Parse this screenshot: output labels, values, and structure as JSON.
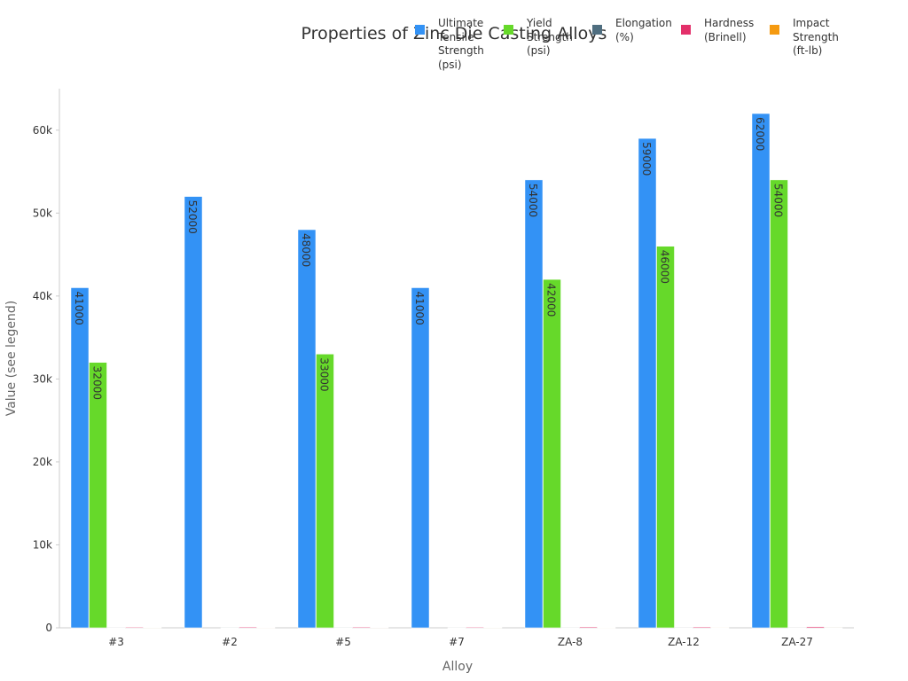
{
  "chart_data": {
    "type": "bar",
    "title": "Properties of Zinc Die Casting Alloys",
    "x_label": "Alloy",
    "y_label": "Value (see legend)",
    "categories": [
      "#3",
      "#2",
      "#5",
      "#7",
      "ZA-8",
      "ZA-12",
      "ZA-27"
    ],
    "series": [
      {
        "name": "Ultimate Tensile Strength (psi)",
        "color": "#3392f5",
        "values": [
          41000,
          52000,
          48000,
          41000,
          54000,
          59000,
          62000
        ]
      },
      {
        "name": "Yield Strength (psi)",
        "color": "#66d92a",
        "values": [
          32000,
          null,
          33000,
          null,
          42000,
          46000,
          54000
        ]
      },
      {
        "name": "Elongation (%)",
        "color": "#4f6e80",
        "values": [
          10,
          7,
          7,
          13,
          8,
          5,
          2.5
        ]
      },
      {
        "name": "Hardness (Brinell)",
        "color": "#e3306a",
        "values": [
          82,
          95,
          91,
          80,
          103,
          100,
          119
        ]
      },
      {
        "name": "Impact Strength (ft-lb)",
        "color": "#f59a10",
        "values": [
          43,
          35,
          48,
          43,
          31,
          21,
          5
        ]
      }
    ],
    "ylim": [
      0,
      65000
    ],
    "yticks": [
      0,
      {
        "value": 10000,
        "label": "10k"
      },
      {
        "value": 20000,
        "label": "20k"
      },
      {
        "value": 30000,
        "label": "30k"
      },
      {
        "value": 40000,
        "label": "40k"
      },
      {
        "value": 50000,
        "label": "50k"
      },
      {
        "value": 60000,
        "label": "60k"
      }
    ],
    "grid": false,
    "legend_position": "top"
  }
}
